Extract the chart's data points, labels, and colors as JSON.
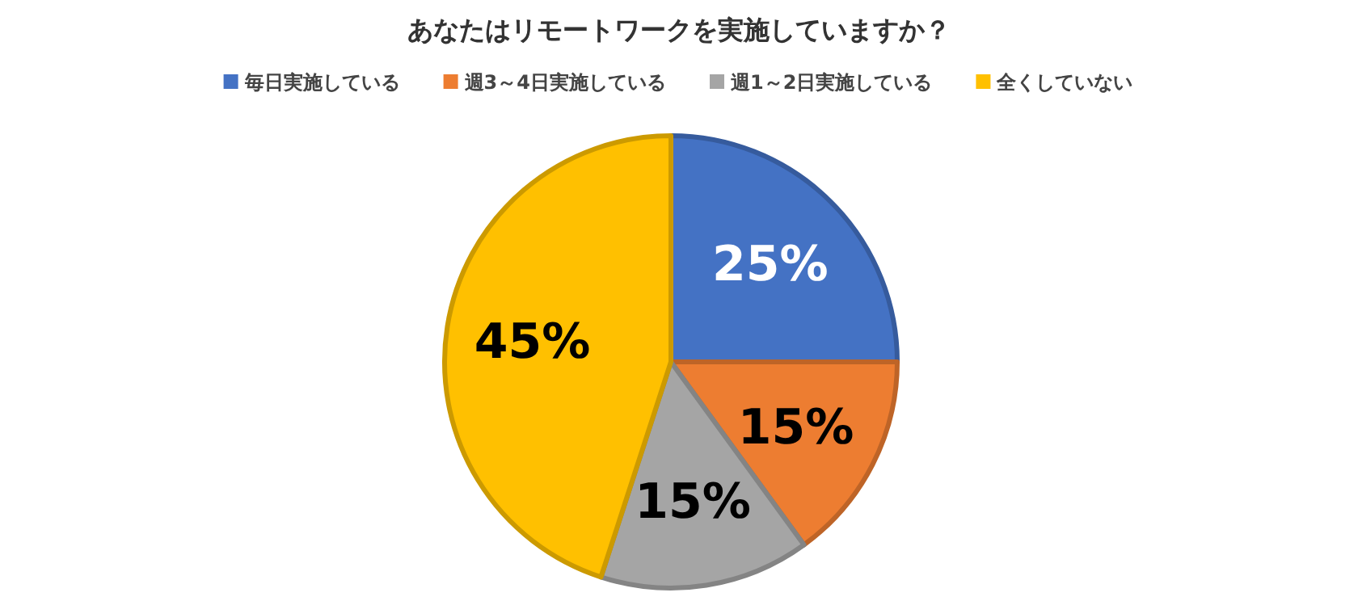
{
  "chart_data": {
    "type": "pie",
    "title": "あなたはリモートワークを実施していますか？",
    "categories": [
      "毎日実施している",
      "週3～4日実施している",
      "週1～2日実施している",
      "全くしていない"
    ],
    "values": [
      25,
      15,
      15,
      45
    ],
    "colors": [
      "#4472c4",
      "#ed7d31",
      "#a5a5a5",
      "#ffc000"
    ],
    "value_labels": [
      "25%",
      "15%",
      "15%",
      "45%"
    ],
    "legend": "top"
  }
}
